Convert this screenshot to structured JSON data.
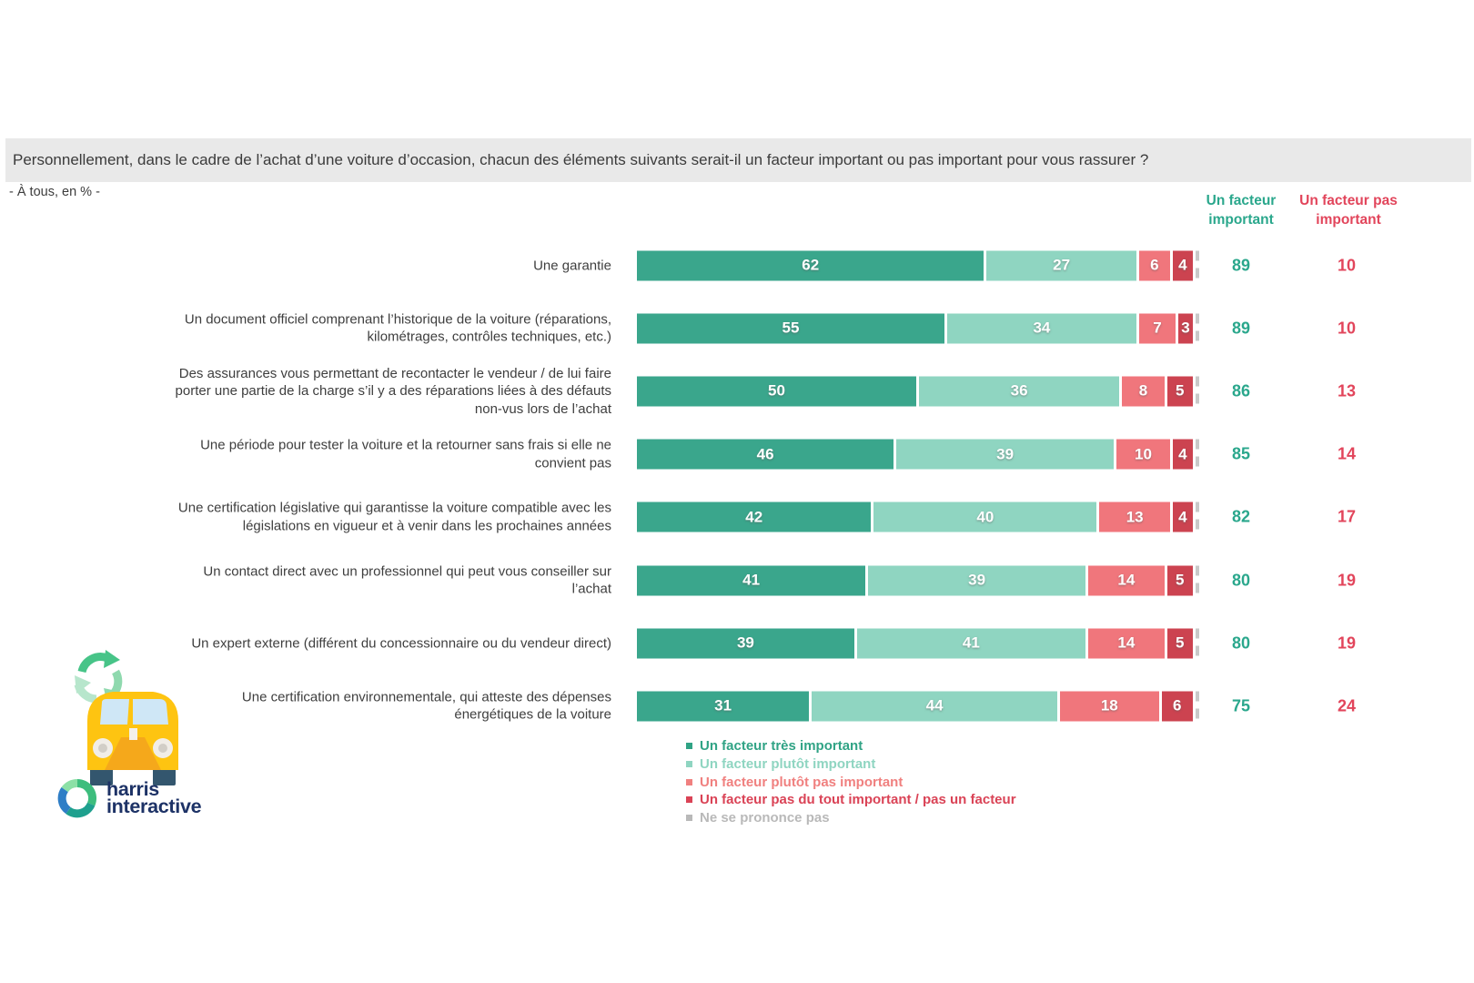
{
  "header": {
    "title": "Personnellement, dans le cadre de l’achat d’une voiture d’occasion, chacun des éléments suivants serait-il un facteur important ou pas important pour vous rassurer ?",
    "subtitle": "- À tous, en % -"
  },
  "summary_columns": {
    "important": {
      "label": "Un facteur important",
      "color": "#2aa78c"
    },
    "not_important": {
      "label": "Un facteur pas important",
      "color": "#e2455b"
    }
  },
  "chart_data": {
    "type": "bar",
    "orientation": "horizontal",
    "stacked": true,
    "unit": "%",
    "xlim": [
      0,
      100
    ],
    "categories": [
      "Une garantie",
      "Un document officiel comprenant l’historique de la voiture (réparations, kilométrages, contrôles techniques, etc.)",
      "Des assurances vous permettant de recontacter le vendeur / de lui faire porter une partie de la charge s’il y a des réparations liées à des défauts non-vus lors de l’achat",
      "Une période pour tester la voiture et la retourner sans frais si elle ne convient pas",
      "Une certification législative qui garantisse la voiture compatible avec les législations en vigueur et à venir dans les prochaines années",
      "Un contact direct avec un professionnel qui peut vous conseiller sur l’achat",
      "Un expert externe (différent du concessionnaire ou du vendeur direct)",
      "Une certification environnementale, qui atteste des dépenses énergétiques de la voiture"
    ],
    "series": [
      {
        "key": "tres-important",
        "name": "Un facteur très important",
        "color": "#3aa68c",
        "show_labels": true,
        "values": [
          62,
          55,
          50,
          46,
          42,
          41,
          39,
          31
        ]
      },
      {
        "key": "plutot-important",
        "name": "Un facteur plutôt important",
        "color": "#8fd5c1",
        "show_labels": true,
        "values": [
          27,
          34,
          36,
          39,
          40,
          39,
          41,
          44
        ]
      },
      {
        "key": "plutot-pas-important",
        "name": "Un facteur plutôt pas important",
        "color": "#f0767c",
        "show_labels": true,
        "values": [
          6,
          7,
          8,
          10,
          13,
          14,
          14,
          18
        ]
      },
      {
        "key": "pas-du-tout-important",
        "name": "Un facteur pas du tout important / pas un facteur",
        "color": "#cc4350",
        "show_labels": true,
        "values": [
          4,
          3,
          5,
          4,
          4,
          5,
          5,
          6
        ]
      },
      {
        "key": "ne-se-prononce-pas",
        "name": "Ne se prononce pas",
        "color": "#c9c9c9",
        "show_labels": false,
        "values": [
          1,
          1,
          1,
          1,
          1,
          1,
          1,
          1
        ]
      }
    ],
    "totals": {
      "important": [
        89,
        89,
        86,
        85,
        82,
        80,
        80,
        75
      ],
      "not_important": [
        10,
        10,
        13,
        14,
        17,
        19,
        19,
        24
      ]
    }
  },
  "legend": {
    "items": [
      {
        "key": "tres-important",
        "label": "Un facteur très important",
        "color": "#30a385"
      },
      {
        "key": "plutot-important",
        "label": "Un facteur plutôt important",
        "color": "#8fd5c1"
      },
      {
        "key": "plutot-pas-important",
        "label": "Un facteur plutôt pas important",
        "color": "#f0807f"
      },
      {
        "key": "pas-du-tout-important",
        "label": "Un facteur pas du tout important / pas un facteur",
        "color": "#da4356"
      },
      {
        "key": "ne-se-prononce-pas",
        "label": "Ne se prononce pas",
        "color": "#b9b9b9"
      }
    ]
  },
  "logo": {
    "line1": "harris",
    "line2": "interactive"
  }
}
